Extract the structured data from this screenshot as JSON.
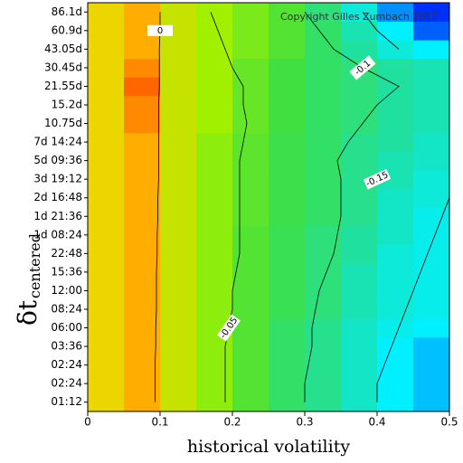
{
  "chart_data": {
    "type": "contour",
    "x_label": "historical volatility",
    "y_label": "δt",
    "y_label_sub": "centered",
    "annotation": "Copyright Gilles Zumbach 2012",
    "categories": [
      "01:12",
      "02:24",
      "02:24",
      "03:36",
      "06:00",
      "08:24",
      "12:00",
      "15:36",
      "22:48",
      "1d 08:24",
      "1d 21:36",
      "2d 16:48",
      "3d 19:12",
      "5d 09:36",
      "7d 14:24",
      "10.75d",
      "15.2d",
      "21.55d",
      "30.45d",
      "43.05d",
      "60.9d",
      "86.1d"
    ],
    "x": [
      0.025,
      0.075,
      0.125,
      0.175,
      0.225,
      0.275,
      0.325,
      0.375,
      0.425,
      0.475
    ],
    "xlim": [
      0,
      0.5
    ],
    "xticks": [
      0,
      0.1,
      0.2,
      0.3,
      0.4,
      0.5
    ],
    "zlim": [
      -0.22,
      0.08
    ],
    "colormap": [
      "#0000ff",
      "#00f0ff",
      "#20e0a0",
      "#40e040",
      "#a0f000",
      "#ffd000",
      "#ff2000"
    ],
    "z": [
      [
        0.02,
        0.04,
        0.0,
        -0.03,
        -0.06,
        -0.09,
        -0.11,
        -0.14,
        -0.17,
        -0.18
      ],
      [
        0.02,
        0.04,
        0.0,
        -0.03,
        -0.06,
        -0.09,
        -0.11,
        -0.14,
        -0.17,
        -0.18
      ],
      [
        0.02,
        0.04,
        0.0,
        -0.03,
        -0.06,
        -0.09,
        -0.11,
        -0.14,
        -0.17,
        -0.18
      ],
      [
        0.02,
        0.04,
        0.0,
        -0.03,
        -0.06,
        -0.09,
        -0.11,
        -0.14,
        -0.17,
        -0.18
      ],
      [
        0.02,
        0.04,
        0.0,
        -0.03,
        -0.06,
        -0.09,
        -0.11,
        -0.14,
        -0.16,
        -0.17
      ],
      [
        0.02,
        0.04,
        0.0,
        -0.03,
        -0.06,
        -0.08,
        -0.1,
        -0.13,
        -0.15,
        -0.16
      ],
      [
        0.02,
        0.04,
        0.0,
        -0.03,
        -0.06,
        -0.08,
        -0.1,
        -0.13,
        -0.15,
        -0.16
      ],
      [
        0.02,
        0.04,
        0.0,
        -0.03,
        -0.06,
        -0.08,
        -0.1,
        -0.13,
        -0.15,
        -0.16
      ],
      [
        0.02,
        0.04,
        0.0,
        -0.03,
        -0.06,
        -0.08,
        -0.1,
        -0.12,
        -0.15,
        -0.16
      ],
      [
        0.02,
        0.04,
        0.0,
        -0.03,
        -0.06,
        -0.08,
        -0.1,
        -0.12,
        -0.14,
        -0.16
      ],
      [
        0.02,
        0.04,
        0.0,
        -0.03,
        -0.055,
        -0.075,
        -0.09,
        -0.11,
        -0.14,
        -0.16
      ],
      [
        0.02,
        0.04,
        0.0,
        -0.03,
        -0.055,
        -0.075,
        -0.09,
        -0.11,
        -0.14,
        -0.15
      ],
      [
        0.02,
        0.04,
        0.0,
        -0.03,
        -0.055,
        -0.075,
        -0.09,
        -0.11,
        -0.13,
        -0.15
      ],
      [
        0.02,
        0.04,
        0.0,
        -0.03,
        -0.055,
        -0.075,
        -0.09,
        -0.11,
        -0.13,
        -0.14
      ],
      [
        0.02,
        0.04,
        0.0,
        -0.03,
        -0.055,
        -0.075,
        -0.09,
        -0.11,
        -0.12,
        -0.14
      ],
      [
        0.02,
        0.05,
        0.0,
        -0.02,
        -0.05,
        -0.07,
        -0.09,
        -0.1,
        -0.12,
        -0.13
      ],
      [
        0.02,
        0.05,
        0.0,
        -0.02,
        -0.05,
        -0.07,
        -0.09,
        -0.1,
        -0.12,
        -0.13
      ],
      [
        0.02,
        0.06,
        0.0,
        -0.02,
        -0.05,
        -0.07,
        -0.09,
        -0.1,
        -0.12,
        -0.13
      ],
      [
        0.02,
        0.05,
        0.0,
        -0.02,
        -0.05,
        -0.07,
        -0.09,
        -0.1,
        -0.12,
        -0.13
      ],
      [
        0.02,
        0.04,
        0.0,
        -0.02,
        -0.04,
        -0.06,
        -0.09,
        -0.12,
        -0.15,
        -0.17
      ],
      [
        0.02,
        0.04,
        0.0,
        -0.02,
        -0.04,
        -0.06,
        -0.09,
        -0.13,
        -0.17,
        -0.2
      ],
      [
        0.02,
        0.04,
        0.0,
        -0.02,
        -0.04,
        -0.06,
        -0.1,
        -0.15,
        -0.19,
        -0.21
      ]
    ],
    "contours": [
      {
        "level": 0,
        "x": [
          0.093,
          0.093,
          0.093,
          0.094,
          0.094,
          0.095,
          0.095,
          0.095,
          0.096,
          0.096,
          0.097,
          0.097,
          0.098,
          0.098,
          0.098,
          0.098,
          0.098,
          0.099,
          0.099,
          0.099,
          0.1,
          0.1
        ]
      },
      {
        "level": -0.05,
        "x": [
          0.19,
          0.19,
          0.19,
          0.19,
          0.195,
          0.2,
          0.2,
          0.205,
          0.21,
          0.21,
          0.21,
          0.21,
          0.21,
          0.21,
          0.215,
          0.22,
          0.215,
          0.215,
          0.2,
          0.19,
          0.18,
          0.17
        ]
      },
      {
        "level": -0.1,
        "x": [
          0.3,
          0.3,
          0.305,
          0.31,
          0.31,
          0.315,
          0.32,
          0.33,
          0.34,
          0.345,
          0.35,
          0.35,
          0.35,
          0.345,
          0.36,
          0.38,
          0.4,
          0.43,
          0.38,
          0.34,
          0.32,
          0.3
        ]
      },
      {
        "level": -0.15,
        "x": [
          0.4,
          0.4,
          0.41,
          0.42,
          0.43,
          0.44,
          0.45,
          0.46,
          0.47,
          0.48,
          0.49,
          0.5,
          null,
          null,
          null,
          null,
          null,
          null,
          null,
          0.43,
          0.4,
          0.38
        ]
      }
    ]
  }
}
